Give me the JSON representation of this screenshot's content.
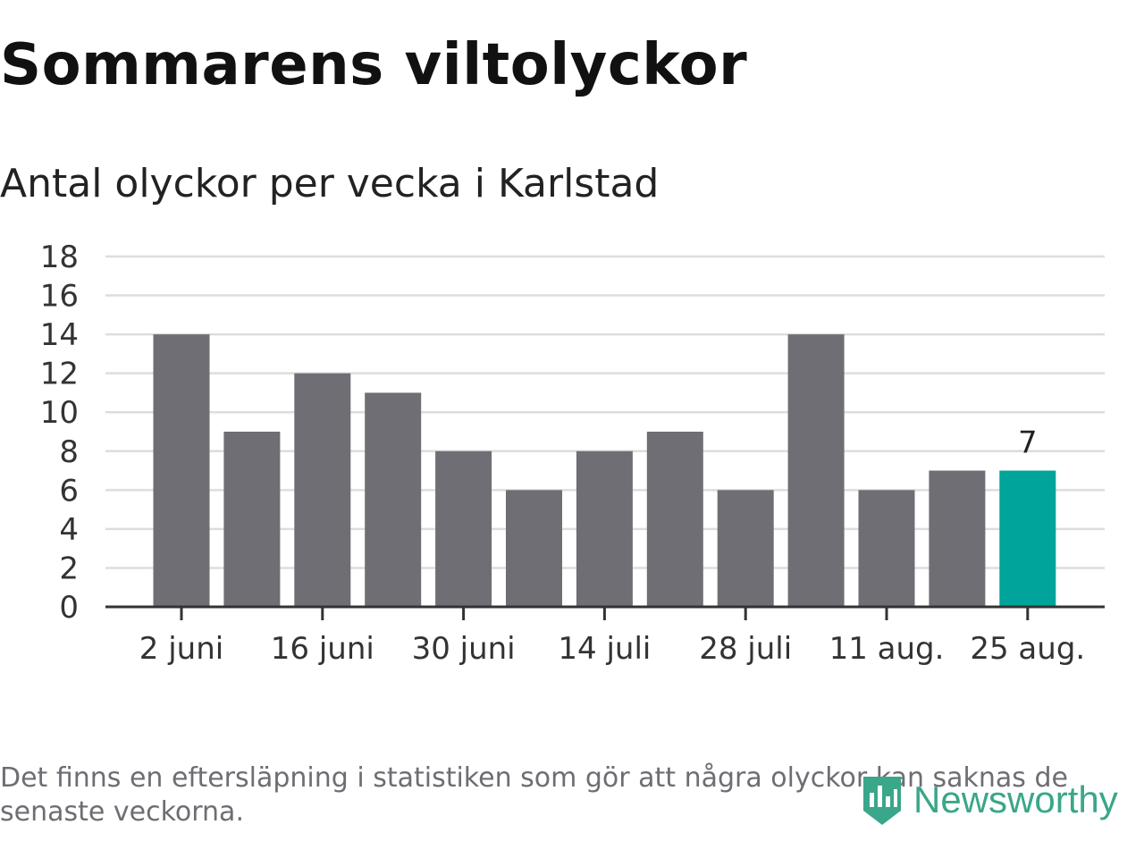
{
  "header": {
    "title": "Sommarens viltolyckor",
    "subtitle": "Antal olyckor per vecka i Karlstad"
  },
  "footer": {
    "note": "Det finns en eftersläpning i statistiken som gör att några olyckor kan saknas de senaste veckorna.",
    "logo_text": "Newsworthy"
  },
  "colors": {
    "bar": "#6f6e74",
    "highlight": "#00a49a",
    "grid": "#dddddd",
    "axis": "#333333",
    "logo": "#3aa68a"
  },
  "chart_data": {
    "type": "bar",
    "title": "Antal olyckor per vecka i Karlstad",
    "xlabel": "",
    "ylabel": "",
    "values": [
      14,
      9,
      12,
      11,
      8,
      6,
      8,
      9,
      6,
      14,
      6,
      7,
      7
    ],
    "x_tick_labels": [
      "2 juni",
      "16 juni",
      "30 juni",
      "14 juli",
      "28 juli",
      "11 aug.",
      "25 aug."
    ],
    "x_tick_every": 2,
    "y_ticks": [
      0,
      2,
      4,
      6,
      8,
      10,
      12,
      14,
      16,
      18
    ],
    "ylim": [
      0,
      18
    ],
    "grid": true,
    "highlight_index": 12,
    "highlight_label": "7"
  }
}
